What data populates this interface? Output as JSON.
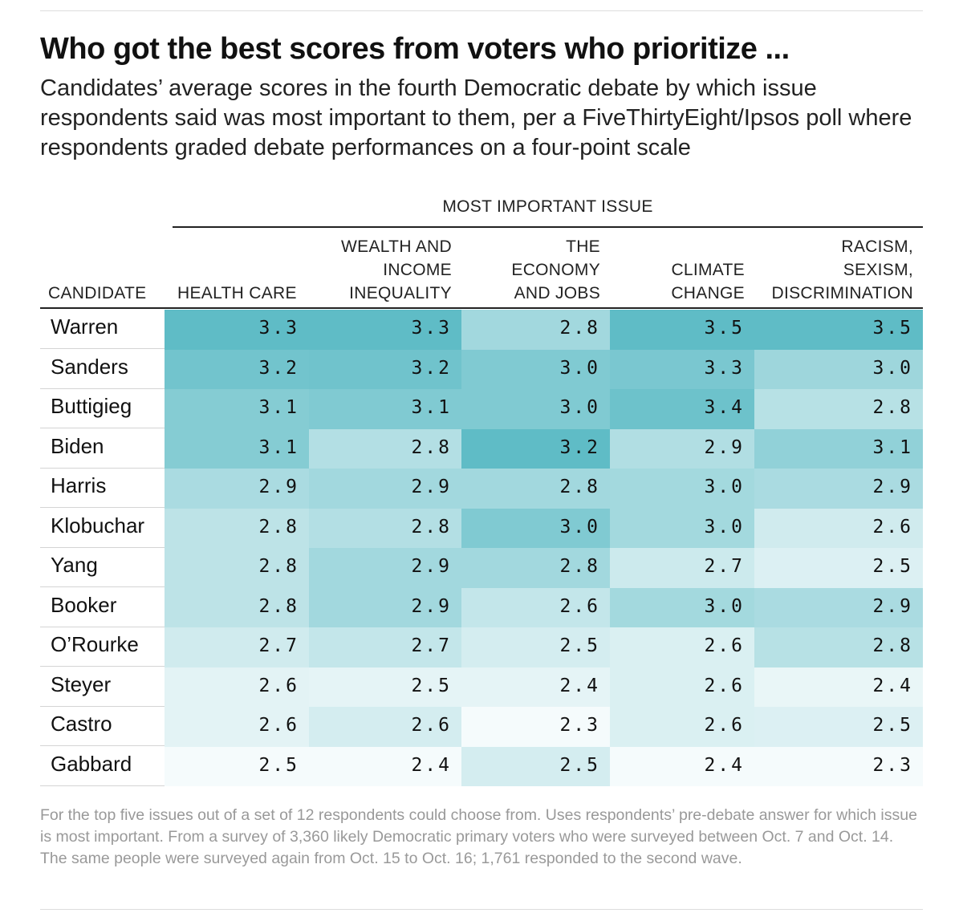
{
  "title": "Who got the best scores from voters who prioritize ...",
  "subtitle": "Candidates’ average scores in the fourth Democratic debate by which issue respondents said was most important to them, per a FiveThirtyEight/Ipsos poll where respondents graded debate performances on a four-point scale",
  "group_header": "MOST IMPORTANT ISSUE",
  "footnote": "For the top five issues out of a set of 12 respondents could choose from. Uses respondents’ pre-debate answer for which issue is most important. From a survey of 3,360 likely Democratic primary voters who were surveyed between Oct. 7 and Oct. 14. The same people were surveyed again from Oct. 15 to Oct. 16; 1,761 responded to the second wave.",
  "chart_data": {
    "type": "table",
    "title": "Who got the best scores from voters who prioritize ...",
    "row_header": "CANDIDATE",
    "columns": [
      {
        "label": "HEALTH CARE",
        "lines": [
          "HEALTH CARE"
        ]
      },
      {
        "label": "WEALTH AND INCOME INEQUALITY",
        "lines": [
          "WEALTH AND",
          "INCOME",
          "INEQUALITY"
        ]
      },
      {
        "label": "THE ECONOMY AND JOBS",
        "lines": [
          "THE",
          "ECONOMY",
          "AND JOBS"
        ]
      },
      {
        "label": "CLIMATE CHANGE",
        "lines": [
          "CLIMATE",
          "CHANGE"
        ]
      },
      {
        "label": "RACISM, SEXISM, DISCRIMINATION",
        "lines": [
          "RACISM,",
          "SEXISM,",
          "DISCRIMINATION"
        ]
      }
    ],
    "rows": [
      {
        "candidate": "Warren",
        "values": [
          "3.3",
          "3.3",
          "2.8",
          "3.5",
          "3.5"
        ]
      },
      {
        "candidate": "Sanders",
        "values": [
          "3.2",
          "3.2",
          "3.0",
          "3.3",
          "3.0"
        ]
      },
      {
        "candidate": "Buttigieg",
        "values": [
          "3.1",
          "3.1",
          "3.0",
          "3.4",
          "2.8"
        ]
      },
      {
        "candidate": "Biden",
        "values": [
          "3.1",
          "2.8",
          "3.2",
          "2.9",
          "3.1"
        ]
      },
      {
        "candidate": "Harris",
        "values": [
          "2.9",
          "2.9",
          "2.8",
          "3.0",
          "2.9"
        ]
      },
      {
        "candidate": "Klobuchar",
        "values": [
          "2.8",
          "2.8",
          "3.0",
          "3.0",
          "2.6"
        ]
      },
      {
        "candidate": "Yang",
        "values": [
          "2.8",
          "2.9",
          "2.8",
          "2.7",
          "2.5"
        ]
      },
      {
        "candidate": "Booker",
        "values": [
          "2.8",
          "2.9",
          "2.6",
          "3.0",
          "2.9"
        ]
      },
      {
        "candidate": "O’Rourke",
        "values": [
          "2.7",
          "2.7",
          "2.5",
          "2.6",
          "2.8"
        ]
      },
      {
        "candidate": "Steyer",
        "values": [
          "2.6",
          "2.5",
          "2.4",
          "2.6",
          "2.4"
        ]
      },
      {
        "candidate": "Castro",
        "values": [
          "2.6",
          "2.6",
          "2.3",
          "2.6",
          "2.5"
        ]
      },
      {
        "candidate": "Gabbard",
        "values": [
          "2.5",
          "2.4",
          "2.5",
          "2.4",
          "2.3"
        ]
      }
    ],
    "color_scale": {
      "low": "#ffffff",
      "high": "#5fbcc6",
      "per_column": true
    }
  }
}
